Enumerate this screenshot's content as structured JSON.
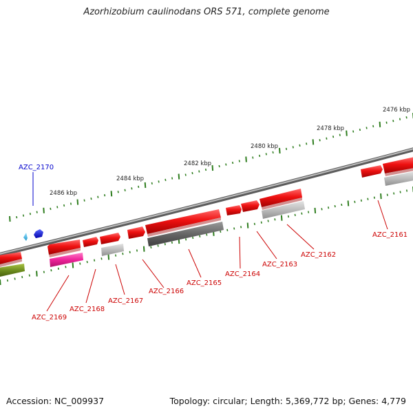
{
  "title": "Azorhizobium caulinodans ORS 571, complete genome",
  "footer": {
    "accession": "Accession: NC_009937",
    "summary": "Topology: circular; Length: 5,369,772 bp; Genes: 4,779"
  },
  "colors": {
    "backbone": "#8a8a8a",
    "tick": "#2e7d1e",
    "red_gene": "#ee1111",
    "dark_gray_gene": "#666666",
    "light_gray_gene": "#bbbbbb",
    "pink_gene": "#ee2299",
    "olive_gene": "#6f8f1f",
    "blue_gene": "#1122dd",
    "light_blue_gene": "#44bbee",
    "red_label": "#cc0000",
    "blue_label": "#0000cc"
  },
  "kbp_labels": [
    "2476 kbp",
    "2478 kbp",
    "2480 kbp",
    "2482 kbp",
    "2484 kbp",
    "2486 kbp"
  ],
  "gene_labels": {
    "AZC_2170": "AZC_2170",
    "AZC_2169": "AZC_2169",
    "AZC_2168": "AZC_2168",
    "AZC_2167": "AZC_2167",
    "AZC_2166": "AZC_2166",
    "AZC_2165": "AZC_2165",
    "AZC_2164": "AZC_2164",
    "AZC_2163": "AZC_2163",
    "AZC_2162": "AZC_2162",
    "AZC_2161": "AZC_2161"
  }
}
